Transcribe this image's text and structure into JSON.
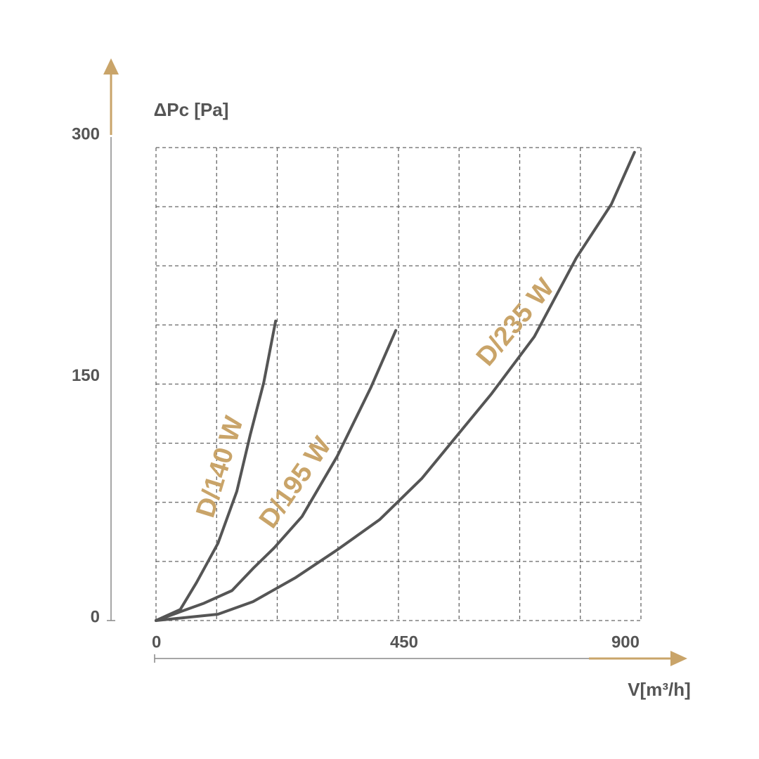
{
  "chart_data": {
    "type": "line",
    "y_label": "ΔPc [Pa]",
    "x_label": "V[m³/h]",
    "xlim": [
      0,
      900
    ],
    "ylim": [
      0,
      300
    ],
    "xticks": [
      0,
      450,
      900
    ],
    "yticks": [
      0,
      150,
      300
    ],
    "xgrid": [
      0,
      112.5,
      225,
      337.5,
      450,
      562.5,
      675,
      787.5,
      900
    ],
    "ygrid": [
      0,
      37.5,
      75,
      112.5,
      150,
      187.5,
      225,
      262.5,
      300
    ],
    "grid": true,
    "label_color": "#c9a469",
    "series": [
      {
        "name": "D/140 W",
        "color": "#555555",
        "x": [
          0,
          45,
          75,
          115,
          150,
          175,
          200,
          222
        ],
        "values": [
          0,
          7,
          24,
          49,
          82,
          118,
          151,
          190
        ]
      },
      {
        "name": "D/195 W",
        "color": "#555555",
        "x": [
          0,
          89,
          141,
          180,
          219,
          271,
          336,
          399,
          445
        ],
        "values": [
          0,
          11,
          19,
          33,
          46,
          66,
          104,
          148,
          184
        ]
      },
      {
        "name": "D/235 W",
        "color": "#555555",
        "x": [
          0,
          115,
          180,
          258,
          337,
          415,
          493,
          558,
          623,
          702,
          780,
          845,
          888
        ],
        "values": [
          0,
          4,
          12,
          27,
          45,
          64,
          90,
          117,
          144,
          180,
          230,
          264,
          297
        ]
      }
    ]
  }
}
